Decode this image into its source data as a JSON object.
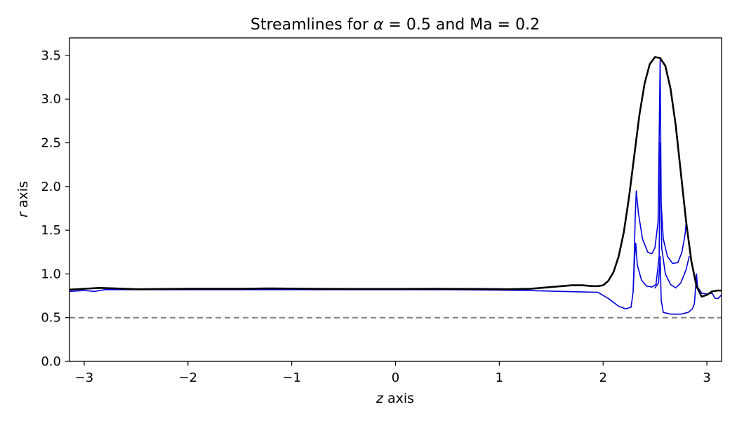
{
  "chart_data": {
    "type": "line",
    "title_prefix": "Streamlines for ",
    "title_symbol": "α",
    "title_suffix": " = 0.5 and Ma = 0.2",
    "xlabel_symbol": "z",
    "xlabel_text": " axis",
    "ylabel_symbol": "r",
    "ylabel_text": " axis",
    "xlim": [
      -3.14159,
      3.14159
    ],
    "ylim": [
      0,
      3.7
    ],
    "xticks": [
      -3,
      -2,
      -1,
      0,
      1,
      2,
      3
    ],
    "xtick_labels": [
      "−3",
      "−2",
      "−1",
      "0",
      "1",
      "2",
      "3"
    ],
    "yticks": [
      0,
      0.5,
      1,
      1.5,
      2,
      2.5,
      3,
      3.5
    ],
    "ytick_labels": [
      "0.0",
      "0.5",
      "1.0",
      "1.5",
      "2.0",
      "2.5",
      "3.0",
      "3.5"
    ],
    "grid": false,
    "legend": "none",
    "reference_line": {
      "y": 0.5,
      "style": "dashed",
      "color": "#808080"
    },
    "series": [
      {
        "color": "#0000dd",
        "width": 1.6,
        "points": [
          [
            -3.14,
            0.8
          ],
          [
            -3.0,
            0.81
          ],
          [
            -2.9,
            0.8
          ],
          [
            -2.8,
            0.82
          ],
          [
            -2.5,
            0.82
          ],
          [
            -1.5,
            0.82
          ],
          [
            -0.5,
            0.82
          ],
          [
            0.5,
            0.82
          ],
          [
            1.0,
            0.815
          ],
          [
            1.3,
            0.81
          ],
          [
            1.6,
            0.8
          ],
          [
            1.95,
            0.79
          ],
          [
            2.05,
            0.72
          ],
          [
            2.15,
            0.63
          ],
          [
            2.22,
            0.6
          ],
          [
            2.27,
            0.62
          ],
          [
            2.29,
            0.8
          ],
          [
            2.3,
            1.2
          ],
          [
            2.31,
            1.65
          ],
          [
            2.32,
            1.95
          ],
          [
            2.34,
            1.7
          ],
          [
            2.38,
            1.4
          ],
          [
            2.43,
            1.25
          ],
          [
            2.47,
            1.23
          ],
          [
            2.5,
            1.3
          ],
          [
            2.53,
            1.6
          ],
          [
            2.55,
            3.45
          ],
          [
            2.56,
            1.8
          ],
          [
            2.58,
            1.4
          ],
          [
            2.62,
            1.2
          ],
          [
            2.67,
            1.12
          ],
          [
            2.72,
            1.13
          ],
          [
            2.76,
            1.25
          ],
          [
            2.79,
            1.45
          ],
          [
            2.8,
            1.58
          ]
        ]
      },
      {
        "color": "#0000dd",
        "width": 1.6,
        "points": [
          [
            2.29,
            0.82
          ],
          [
            2.305,
            1.2
          ],
          [
            2.315,
            1.35
          ],
          [
            2.33,
            1.1
          ],
          [
            2.37,
            0.93
          ],
          [
            2.42,
            0.86
          ],
          [
            2.47,
            0.85
          ],
          [
            2.51,
            0.88
          ],
          [
            2.54,
            1.2
          ],
          [
            2.55,
            2.5
          ],
          [
            2.565,
            1.3
          ],
          [
            2.6,
            1.0
          ],
          [
            2.65,
            0.88
          ],
          [
            2.7,
            0.84
          ],
          [
            2.75,
            0.9
          ],
          [
            2.8,
            1.05
          ],
          [
            2.83,
            1.2
          ]
        ]
      },
      {
        "color": "#0000dd",
        "width": 1.6,
        "points": [
          [
            2.5,
            0.84
          ],
          [
            2.535,
            0.9
          ],
          [
            2.55,
            1.2
          ],
          [
            2.56,
            0.7
          ],
          [
            2.58,
            0.56
          ],
          [
            2.65,
            0.54
          ],
          [
            2.75,
            0.54
          ],
          [
            2.82,
            0.56
          ],
          [
            2.86,
            0.6
          ],
          [
            2.88,
            0.66
          ],
          [
            2.89,
            0.82
          ],
          [
            2.9,
            1.0
          ],
          [
            2.91,
            0.85
          ],
          [
            2.95,
            0.78
          ],
          [
            3.0,
            0.77
          ],
          [
            3.05,
            0.78
          ],
          [
            3.08,
            0.72
          ],
          [
            3.11,
            0.72
          ],
          [
            3.14,
            0.76
          ]
        ]
      },
      {
        "color": "#000000",
        "width": 2.6,
        "points": [
          [
            -3.14,
            0.82
          ],
          [
            -3.0,
            0.83
          ],
          [
            -2.85,
            0.84
          ],
          [
            -2.7,
            0.835
          ],
          [
            -2.5,
            0.825
          ],
          [
            -2.0,
            0.83
          ],
          [
            -1.5,
            0.83
          ],
          [
            -1.2,
            0.835
          ],
          [
            -0.8,
            0.83
          ],
          [
            -0.4,
            0.828
          ],
          [
            0.0,
            0.828
          ],
          [
            0.4,
            0.83
          ],
          [
            0.8,
            0.828
          ],
          [
            1.1,
            0.825
          ],
          [
            1.3,
            0.83
          ],
          [
            1.5,
            0.85
          ],
          [
            1.7,
            0.87
          ],
          [
            1.8,
            0.87
          ],
          [
            1.9,
            0.86
          ],
          [
            1.95,
            0.86
          ],
          [
            2.0,
            0.87
          ],
          [
            2.05,
            0.92
          ],
          [
            2.1,
            1.02
          ],
          [
            2.15,
            1.2
          ],
          [
            2.2,
            1.48
          ],
          [
            2.25,
            1.88
          ],
          [
            2.3,
            2.35
          ],
          [
            2.35,
            2.82
          ],
          [
            2.4,
            3.18
          ],
          [
            2.45,
            3.4
          ],
          [
            2.5,
            3.48
          ],
          [
            2.55,
            3.47
          ],
          [
            2.6,
            3.38
          ],
          [
            2.65,
            3.12
          ],
          [
            2.7,
            2.7
          ],
          [
            2.75,
            2.15
          ],
          [
            2.8,
            1.6
          ],
          [
            2.85,
            1.15
          ],
          [
            2.9,
            0.86
          ],
          [
            2.95,
            0.74
          ],
          [
            3.0,
            0.76
          ],
          [
            3.05,
            0.8
          ],
          [
            3.1,
            0.81
          ],
          [
            3.14,
            0.81
          ]
        ]
      }
    ]
  }
}
